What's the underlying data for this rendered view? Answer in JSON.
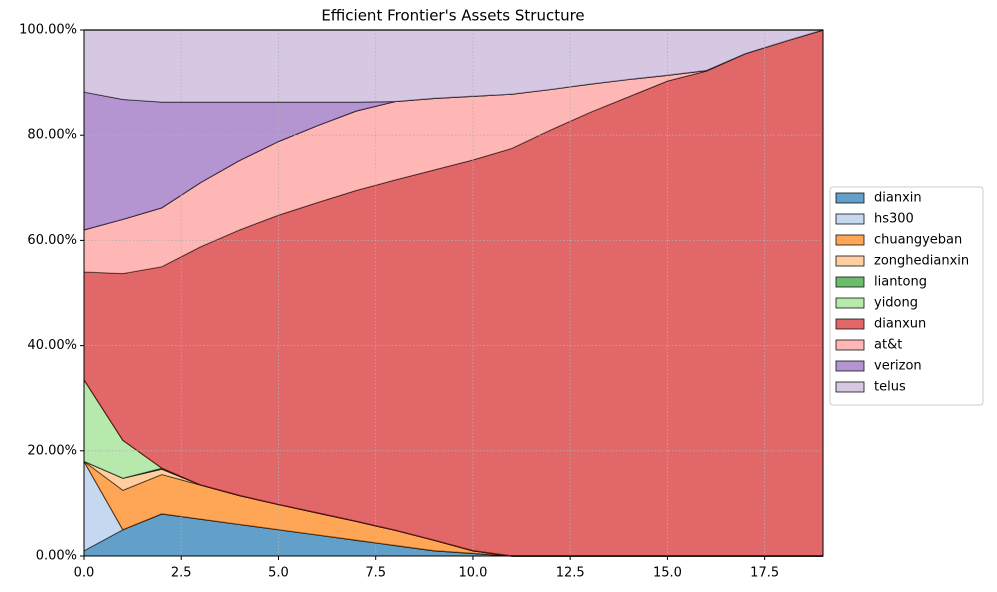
{
  "chart_data": {
    "type": "stacked_area",
    "title": "Efficient Frontier's Assets Structure",
    "x": [
      0,
      1,
      2,
      3,
      4,
      5,
      6,
      7,
      8,
      9,
      10,
      11,
      12,
      13,
      14,
      15,
      16,
      17,
      18,
      19
    ],
    "series": [
      {
        "name": "dianxin",
        "color": "#1f77b4",
        "values": [
          0.01,
          0.05,
          0.08,
          0.07,
          0.06,
          0.05,
          0.04,
          0.03,
          0.02,
          0.01,
          0.005,
          0,
          0,
          0,
          0,
          0,
          0,
          0,
          0,
          0
        ]
      },
      {
        "name": "hs300",
        "color": "#aec7e8",
        "values": [
          0.17,
          0,
          0,
          0,
          0,
          0,
          0,
          0,
          0,
          0,
          0,
          0,
          0,
          0,
          0,
          0,
          0,
          0,
          0,
          0
        ]
      },
      {
        "name": "chuangyeban",
        "color": "#ff7f0e",
        "values": [
          0,
          0.075,
          0.075,
          0.065,
          0.055,
          0.048,
          0.042,
          0.036,
          0.029,
          0.02,
          0.005,
          0,
          0,
          0,
          0,
          0,
          0,
          0,
          0,
          0
        ]
      },
      {
        "name": "zonghedianxin",
        "color": "#ffbb78",
        "values": [
          0,
          0.023,
          0.01,
          0,
          0,
          0,
          0,
          0,
          0,
          0,
          0,
          0,
          0,
          0,
          0,
          0,
          0,
          0,
          0,
          0
        ]
      },
      {
        "name": "liantong",
        "color": "#2ca02c",
        "values": [
          0,
          0,
          0.002,
          0,
          0,
          0,
          0,
          0,
          0,
          0,
          0,
          0,
          0,
          0,
          0,
          0,
          0,
          0,
          0,
          0
        ]
      },
      {
        "name": "yidong",
        "color": "#98df8a",
        "values": [
          0.155,
          0.072,
          0,
          0,
          0,
          0,
          0,
          0,
          0,
          0,
          0,
          0,
          0,
          0,
          0,
          0,
          0,
          0,
          0,
          0
        ]
      },
      {
        "name": "dianxun",
        "color": "#d62728",
        "values": [
          0.205,
          0.317,
          0.383,
          0.453,
          0.505,
          0.55,
          0.59,
          0.629,
          0.666,
          0.704,
          0.743,
          0.775,
          0.81,
          0.843,
          0.873,
          0.903,
          0.922,
          0.955,
          0.978,
          1
        ]
      },
      {
        "name": "at&t",
        "color": "#ff9896",
        "values": [
          0.08,
          0.103,
          0.112,
          0.122,
          0.132,
          0.14,
          0.146,
          0.151,
          0.149,
          0.136,
          0.121,
          0.103,
          0.077,
          0.054,
          0.033,
          0.011,
          0.001,
          0,
          0,
          0
        ]
      },
      {
        "name": "verizon",
        "color": "#9467bd",
        "values": [
          0.262,
          0.228,
          0.201,
          0.153,
          0.111,
          0.075,
          0.045,
          0.017,
          0,
          0,
          0,
          0,
          0,
          0,
          0,
          0,
          0,
          0,
          0,
          0
        ]
      },
      {
        "name": "telus",
        "color": "#c5b0d5",
        "values": [
          0.118,
          0.132,
          0.137,
          0.137,
          0.137,
          0.137,
          0.137,
          0.137,
          0.136,
          0.13,
          0.126,
          0.122,
          0.113,
          0.103,
          0.094,
          0.086,
          0.077,
          0.045,
          0.022,
          0
        ]
      }
    ],
    "xlim": [
      0,
      19
    ],
    "xticks": [
      {
        "value": 0,
        "label": "0.0"
      },
      2.5,
      {
        "value": 5,
        "label": "5.0"
      },
      7.5,
      {
        "value": 10,
        "label": "10.0"
      },
      12.5,
      {
        "value": 15,
        "label": "15.0"
      },
      17.5
    ],
    "ylim": [
      0,
      1
    ],
    "yticks": [
      {
        "value": 0,
        "label": "0.00%"
      },
      {
        "value": 0.2,
        "label": "20.00%"
      },
      {
        "value": 0.4,
        "label": "40.00%"
      },
      {
        "value": 0.6,
        "label": "60.00%"
      },
      {
        "value": 0.8,
        "label": "80.00%"
      },
      {
        "value": 1,
        "label": "100.00%"
      }
    ],
    "grid": true,
    "legend": "right"
  }
}
